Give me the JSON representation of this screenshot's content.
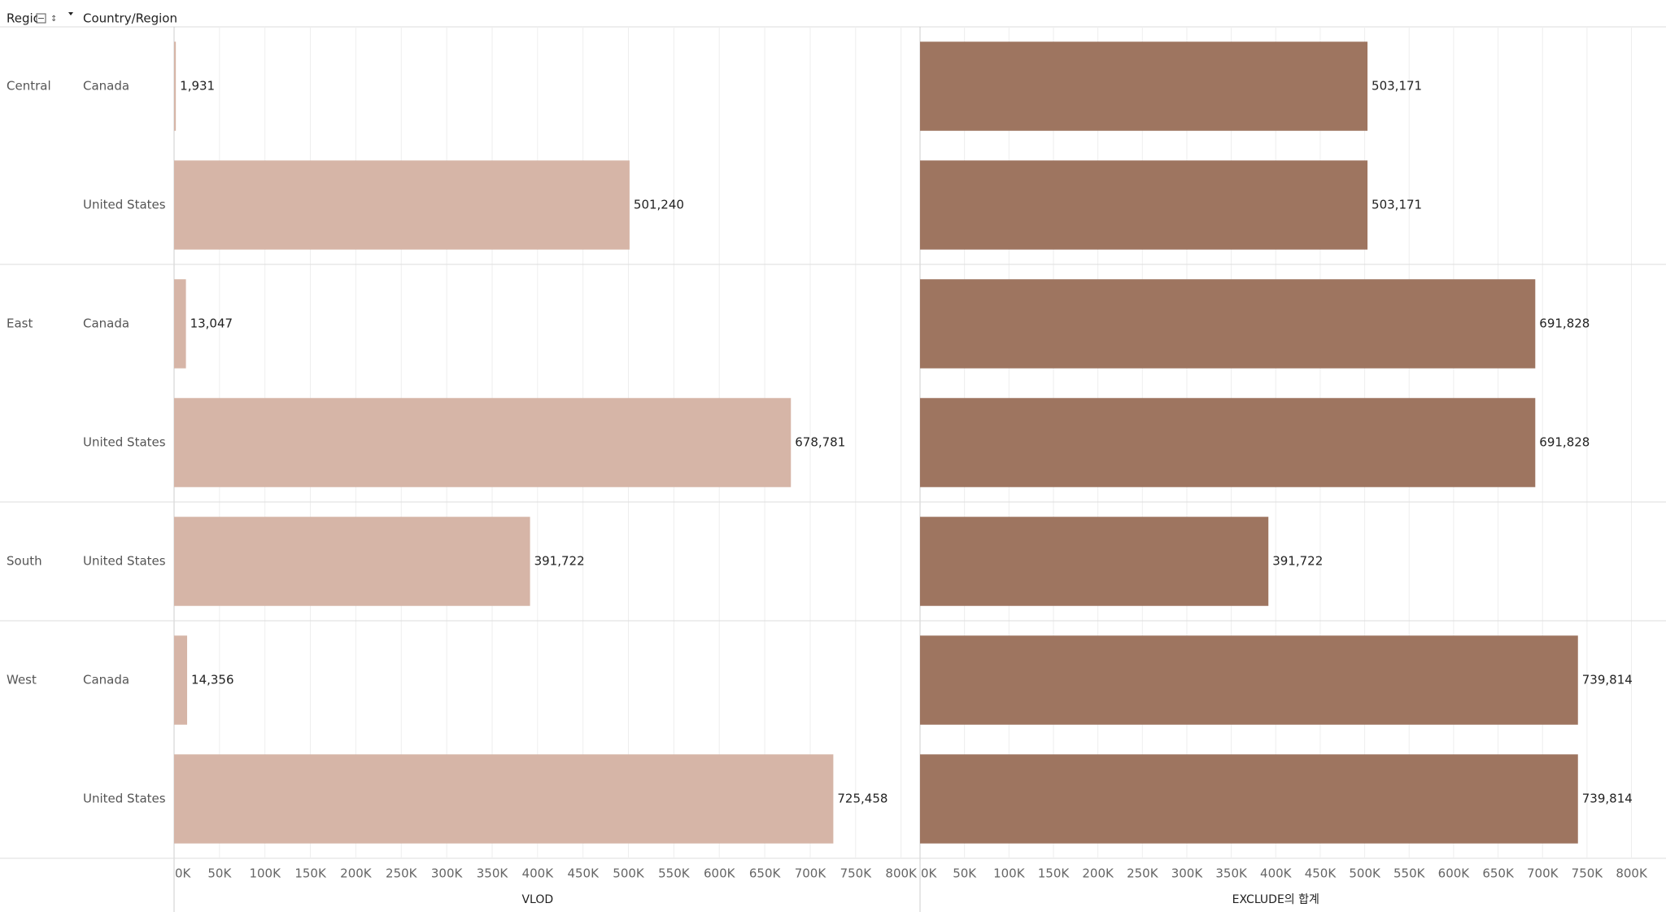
{
  "header": {
    "region": "Region",
    "country": "Country/Region"
  },
  "chart_data": {
    "type": "bar",
    "groups": [
      "Central",
      null,
      "East",
      null,
      "South",
      "West",
      null
    ],
    "categories": [
      "Canada",
      "United States",
      "Canada",
      "United States",
      "United States",
      "Canada",
      "United States"
    ],
    "series": [
      {
        "name": "VLOD",
        "color": "#d6b5a7",
        "values": [
          1931,
          501240,
          13047,
          678781,
          391722,
          14356,
          725458
        ],
        "value_labels": [
          "1,931",
          "501,240",
          "13,047",
          "678,781",
          "391,722",
          "14,356",
          "725,458"
        ],
        "xlim": [
          0,
          820000
        ],
        "xticks": [
          {
            "value": 0,
            "label": "0K"
          },
          {
            "value": 50000,
            "label": "50K"
          },
          {
            "value": 100000,
            "label": "100K"
          },
          {
            "value": 150000,
            "label": "150K"
          },
          {
            "value": 200000,
            "label": "200K"
          },
          {
            "value": 250000,
            "label": "250K"
          },
          {
            "value": 300000,
            "label": "300K"
          },
          {
            "value": 350000,
            "label": "350K"
          },
          {
            "value": 400000,
            "label": "400K"
          },
          {
            "value": 450000,
            "label": "450K"
          },
          {
            "value": 500000,
            "label": "500K"
          },
          {
            "value": 550000,
            "label": "550K"
          },
          {
            "value": 600000,
            "label": "600K"
          },
          {
            "value": 650000,
            "label": "650K"
          },
          {
            "value": 700000,
            "label": "700K"
          },
          {
            "value": 750000,
            "label": "750K"
          },
          {
            "value": 800000,
            "label": "800K"
          }
        ]
      },
      {
        "name": "EXCLUDE의 합계",
        "color": "#9e7560",
        "values": [
          503171,
          503171,
          691828,
          691828,
          391722,
          739814,
          739814
        ],
        "value_labels": [
          "503,171",
          "503,171",
          "691,828",
          "691,828",
          "391,722",
          "739,814",
          "739,814"
        ],
        "xlim": [
          0,
          837000
        ],
        "xticks": [
          {
            "value": 0,
            "label": "0K"
          },
          {
            "value": 50000,
            "label": "50K"
          },
          {
            "value": 100000,
            "label": "100K"
          },
          {
            "value": 150000,
            "label": "150K"
          },
          {
            "value": 200000,
            "label": "200K"
          },
          {
            "value": 250000,
            "label": "250K"
          },
          {
            "value": 300000,
            "label": "300K"
          },
          {
            "value": 350000,
            "label": "350K"
          },
          {
            "value": 400000,
            "label": "400K"
          },
          {
            "value": 450000,
            "label": "450K"
          },
          {
            "value": 500000,
            "label": "500K"
          },
          {
            "value": 550000,
            "label": "550K"
          },
          {
            "value": 600000,
            "label": "600K"
          },
          {
            "value": 650000,
            "label": "650K"
          },
          {
            "value": 700000,
            "label": "700K"
          },
          {
            "value": 750000,
            "label": "750K"
          },
          {
            "value": 800000,
            "label": "800K"
          }
        ]
      }
    ],
    "grid": true
  }
}
